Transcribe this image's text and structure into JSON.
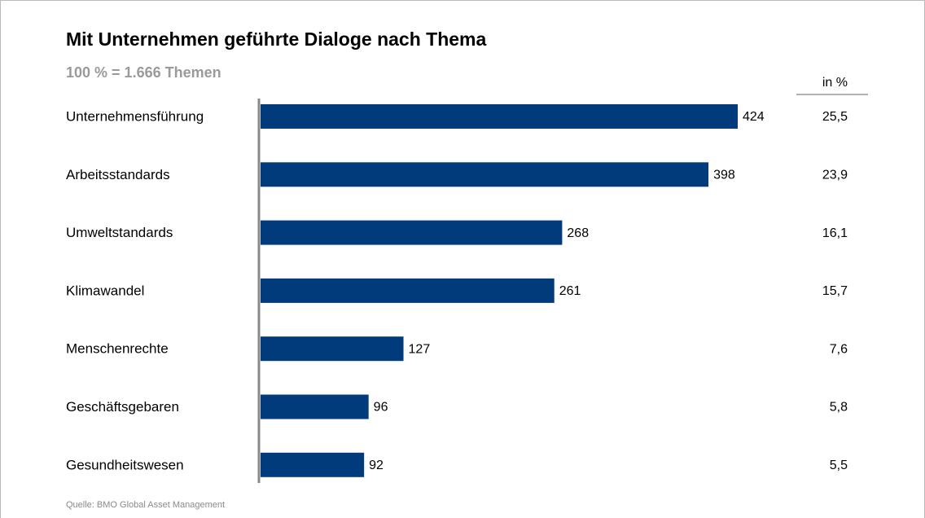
{
  "chart_data": {
    "type": "bar",
    "orientation": "horizontal",
    "title": "Mit Unternehmen geführte Dialoge nach Thema",
    "subtitle": "100 % = 1.666 Themen",
    "categories": [
      "Unternehmensführung",
      "Arbeitsstandards",
      "Umweltstandards",
      "Klimawandel",
      "Menschenrechte",
      "Geschäftsgebaren",
      "Gesundheitswesen"
    ],
    "values": [
      424,
      398,
      268,
      261,
      127,
      96,
      92
    ],
    "color": "#023b7c",
    "xlim": [
      0,
      424
    ],
    "share_column": {
      "header": "in %",
      "values": [
        25.5,
        23.9,
        16.1,
        15.7,
        7.6,
        5.8,
        5.5
      ],
      "value_labels": [
        "25,5",
        "23,9",
        "16,1",
        "15,7",
        "7,6",
        "5,8",
        "5,5"
      ]
    },
    "source": "Quelle: BMO Global Asset Management"
  }
}
